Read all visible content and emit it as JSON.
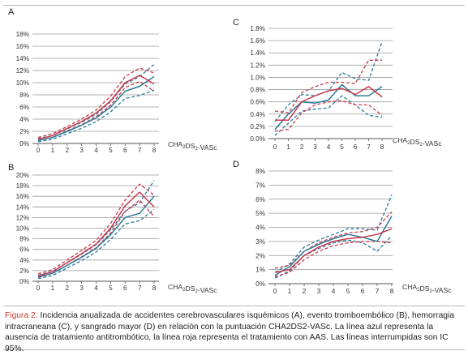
{
  "caption": {
    "label": "Figura 2.",
    "text": "Incidencia anualizada de accidentes cerebrovasculares isquémicos (A), evento tromboembólico (B), hemorragia intracraneana (C), y sangrado mayor (D) en relación con la puntuación CHA2DS2-VASc. La línea azul representa la ausencia de tratamiento antitrombótico, la línea roja representa el tratamiento con AAS. Las líneas interrumpidas son IC 95%."
  },
  "colors": {
    "blue": "#2b7a99",
    "red": "#c8394c",
    "grid": "#9a9a9a",
    "axis": "#555555"
  },
  "chart_data": [
    {
      "panel": "A",
      "type": "line",
      "x": [
        0,
        1,
        2,
        3,
        4,
        5,
        6,
        7,
        8
      ],
      "ylim": [
        0,
        18
      ],
      "yticks": [
        "0%",
        "2%",
        "4%",
        "6%",
        "8%",
        "10%",
        "12%",
        "14%",
        "16%",
        "18%"
      ],
      "xlabel_main": "CHA",
      "xlabel_sub1": "2",
      "xlabel_mid": "DS",
      "xlabel_sub2": "2",
      "xlabel_end": "-VASc",
      "grid": true,
      "series": [
        {
          "color": "blue",
          "dashed": false,
          "values": [
            0.5,
            1.0,
            2.0,
            3.0,
            4.2,
            6.0,
            8.6,
            9.4,
            11.0
          ]
        },
        {
          "color": "blue",
          "dashed": true,
          "values": [
            0.3,
            0.7,
            1.6,
            2.5,
            3.6,
            5.2,
            7.4,
            7.9,
            8.8
          ]
        },
        {
          "color": "blue",
          "dashed": true,
          "values": [
            0.8,
            1.3,
            2.4,
            3.5,
            4.8,
            6.9,
            9.8,
            11.0,
            13.0
          ]
        },
        {
          "color": "red",
          "dashed": false,
          "values": [
            0.7,
            1.3,
            2.5,
            3.6,
            5.0,
            7.0,
            10.0,
            11.2,
            9.8
          ]
        },
        {
          "color": "red",
          "dashed": true,
          "values": [
            0.5,
            1.0,
            2.1,
            3.1,
            4.4,
            6.3,
            9.2,
            10.2,
            8.6
          ]
        },
        {
          "color": "red",
          "dashed": true,
          "values": [
            1.0,
            1.6,
            2.8,
            4.0,
            5.5,
            7.8,
            11.0,
            12.4,
            11.6
          ]
        }
      ]
    },
    {
      "panel": "B",
      "type": "line",
      "x": [
        0,
        1,
        2,
        3,
        4,
        5,
        6,
        7,
        8
      ],
      "ylim": [
        0,
        20
      ],
      "yticks": [
        "0%",
        "2%",
        "4%",
        "6%",
        "8%",
        "10%",
        "12%",
        "14%",
        "16%",
        "18%",
        "20%"
      ],
      "xlabel_main": "CHA",
      "xlabel_sub1": "2",
      "xlabel_mid": "DS",
      "xlabel_sub2": "2",
      "xlabel_end": "-VASc",
      "grid": true,
      "series": [
        {
          "color": "blue",
          "dashed": false,
          "values": [
            0.8,
            1.5,
            3.0,
            4.5,
            6.2,
            8.8,
            12.0,
            12.8,
            16.0
          ]
        },
        {
          "color": "blue",
          "dashed": true,
          "values": [
            0.5,
            1.1,
            2.5,
            3.9,
            5.5,
            7.9,
            10.8,
            11.4,
            13.5
          ]
        },
        {
          "color": "blue",
          "dashed": true,
          "values": [
            1.1,
            1.9,
            3.5,
            5.1,
            6.9,
            9.7,
            13.2,
            14.8,
            19.0
          ]
        },
        {
          "color": "red",
          "dashed": false,
          "values": [
            1.0,
            1.8,
            3.5,
            5.2,
            7.0,
            10.0,
            14.2,
            16.8,
            14.0
          ]
        },
        {
          "color": "red",
          "dashed": true,
          "values": [
            0.7,
            1.5,
            3.0,
            4.6,
            6.3,
            9.1,
            13.1,
            15.3,
            12.2
          ]
        },
        {
          "color": "red",
          "dashed": true,
          "values": [
            1.4,
            2.2,
            4.0,
            5.8,
            7.7,
            10.9,
            15.3,
            18.3,
            16.2
          ]
        }
      ]
    },
    {
      "panel": "C",
      "type": "line",
      "x": [
        0,
        1,
        2,
        3,
        4,
        5,
        6,
        7,
        8
      ],
      "ylim": [
        0,
        1.8
      ],
      "yticks": [
        "0.0%",
        "0.2%",
        "0.4%",
        "0.6%",
        "0.8%",
        "1.0%",
        "1.2%",
        "1.4%",
        "1.6%",
        "1.8%"
      ],
      "xlabel_main": "CHA",
      "xlabel_sub1": "2",
      "xlabel_mid": "DS",
      "xlabel_sub2": "2",
      "xlabel_end": "-VASc",
      "grid": true,
      "series": [
        {
          "color": "blue",
          "dashed": false,
          "values": [
            0.15,
            0.4,
            0.6,
            0.58,
            0.63,
            0.88,
            0.7,
            0.7,
            0.85
          ]
        },
        {
          "color": "blue",
          "dashed": true,
          "values": [
            0.05,
            0.25,
            0.45,
            0.48,
            0.5,
            0.7,
            0.55,
            0.38,
            0.35
          ]
        },
        {
          "color": "blue",
          "dashed": true,
          "values": [
            0.28,
            0.55,
            0.72,
            0.7,
            0.78,
            1.08,
            0.98,
            0.95,
            1.58
          ]
        },
        {
          "color": "red",
          "dashed": false,
          "values": [
            0.3,
            0.3,
            0.6,
            0.7,
            0.78,
            0.82,
            0.72,
            0.85,
            0.68
          ]
        },
        {
          "color": "red",
          "dashed": true,
          "values": [
            0.12,
            0.15,
            0.42,
            0.55,
            0.6,
            0.62,
            0.55,
            0.55,
            0.38
          ]
        },
        {
          "color": "red",
          "dashed": true,
          "values": [
            0.45,
            0.42,
            0.75,
            0.85,
            0.92,
            0.92,
            0.9,
            1.28,
            1.28
          ]
        }
      ]
    },
    {
      "panel": "D",
      "type": "line",
      "x": [
        0,
        1,
        2,
        3,
        4,
        5,
        6,
        7,
        8
      ],
      "ylim": [
        0,
        8
      ],
      "yticks": [
        "0%",
        "1%",
        "2%",
        "3%",
        "4%",
        "5%",
        "6%",
        "7%",
        "8%"
      ],
      "xlabel_main": "CHA",
      "xlabel_sub1": "2",
      "xlabel_mid": "DS",
      "xlabel_sub2": "2",
      "xlabel_end": "-VASc",
      "grid": true,
      "series": [
        {
          "color": "blue",
          "dashed": false,
          "values": [
            0.6,
            1.2,
            2.3,
            2.8,
            3.2,
            3.5,
            3.3,
            3.0,
            4.8
          ]
        },
        {
          "color": "blue",
          "dashed": true,
          "values": [
            0.4,
            0.9,
            2.0,
            2.5,
            2.9,
            3.1,
            2.9,
            2.3,
            3.4
          ]
        },
        {
          "color": "blue",
          "dashed": true,
          "values": [
            0.8,
            1.4,
            2.6,
            3.1,
            3.5,
            3.9,
            3.9,
            3.8,
            6.3
          ]
        },
        {
          "color": "red",
          "dashed": false,
          "values": [
            0.8,
            1.0,
            2.0,
            2.6,
            3.0,
            3.2,
            3.3,
            3.5,
            3.9
          ]
        },
        {
          "color": "red",
          "dashed": true,
          "values": [
            0.5,
            0.8,
            1.7,
            2.3,
            2.7,
            2.9,
            3.0,
            3.0,
            2.9
          ]
        },
        {
          "color": "red",
          "dashed": true,
          "values": [
            1.1,
            1.3,
            2.3,
            2.9,
            3.3,
            3.6,
            3.7,
            4.0,
            5.1
          ]
        }
      ]
    }
  ]
}
